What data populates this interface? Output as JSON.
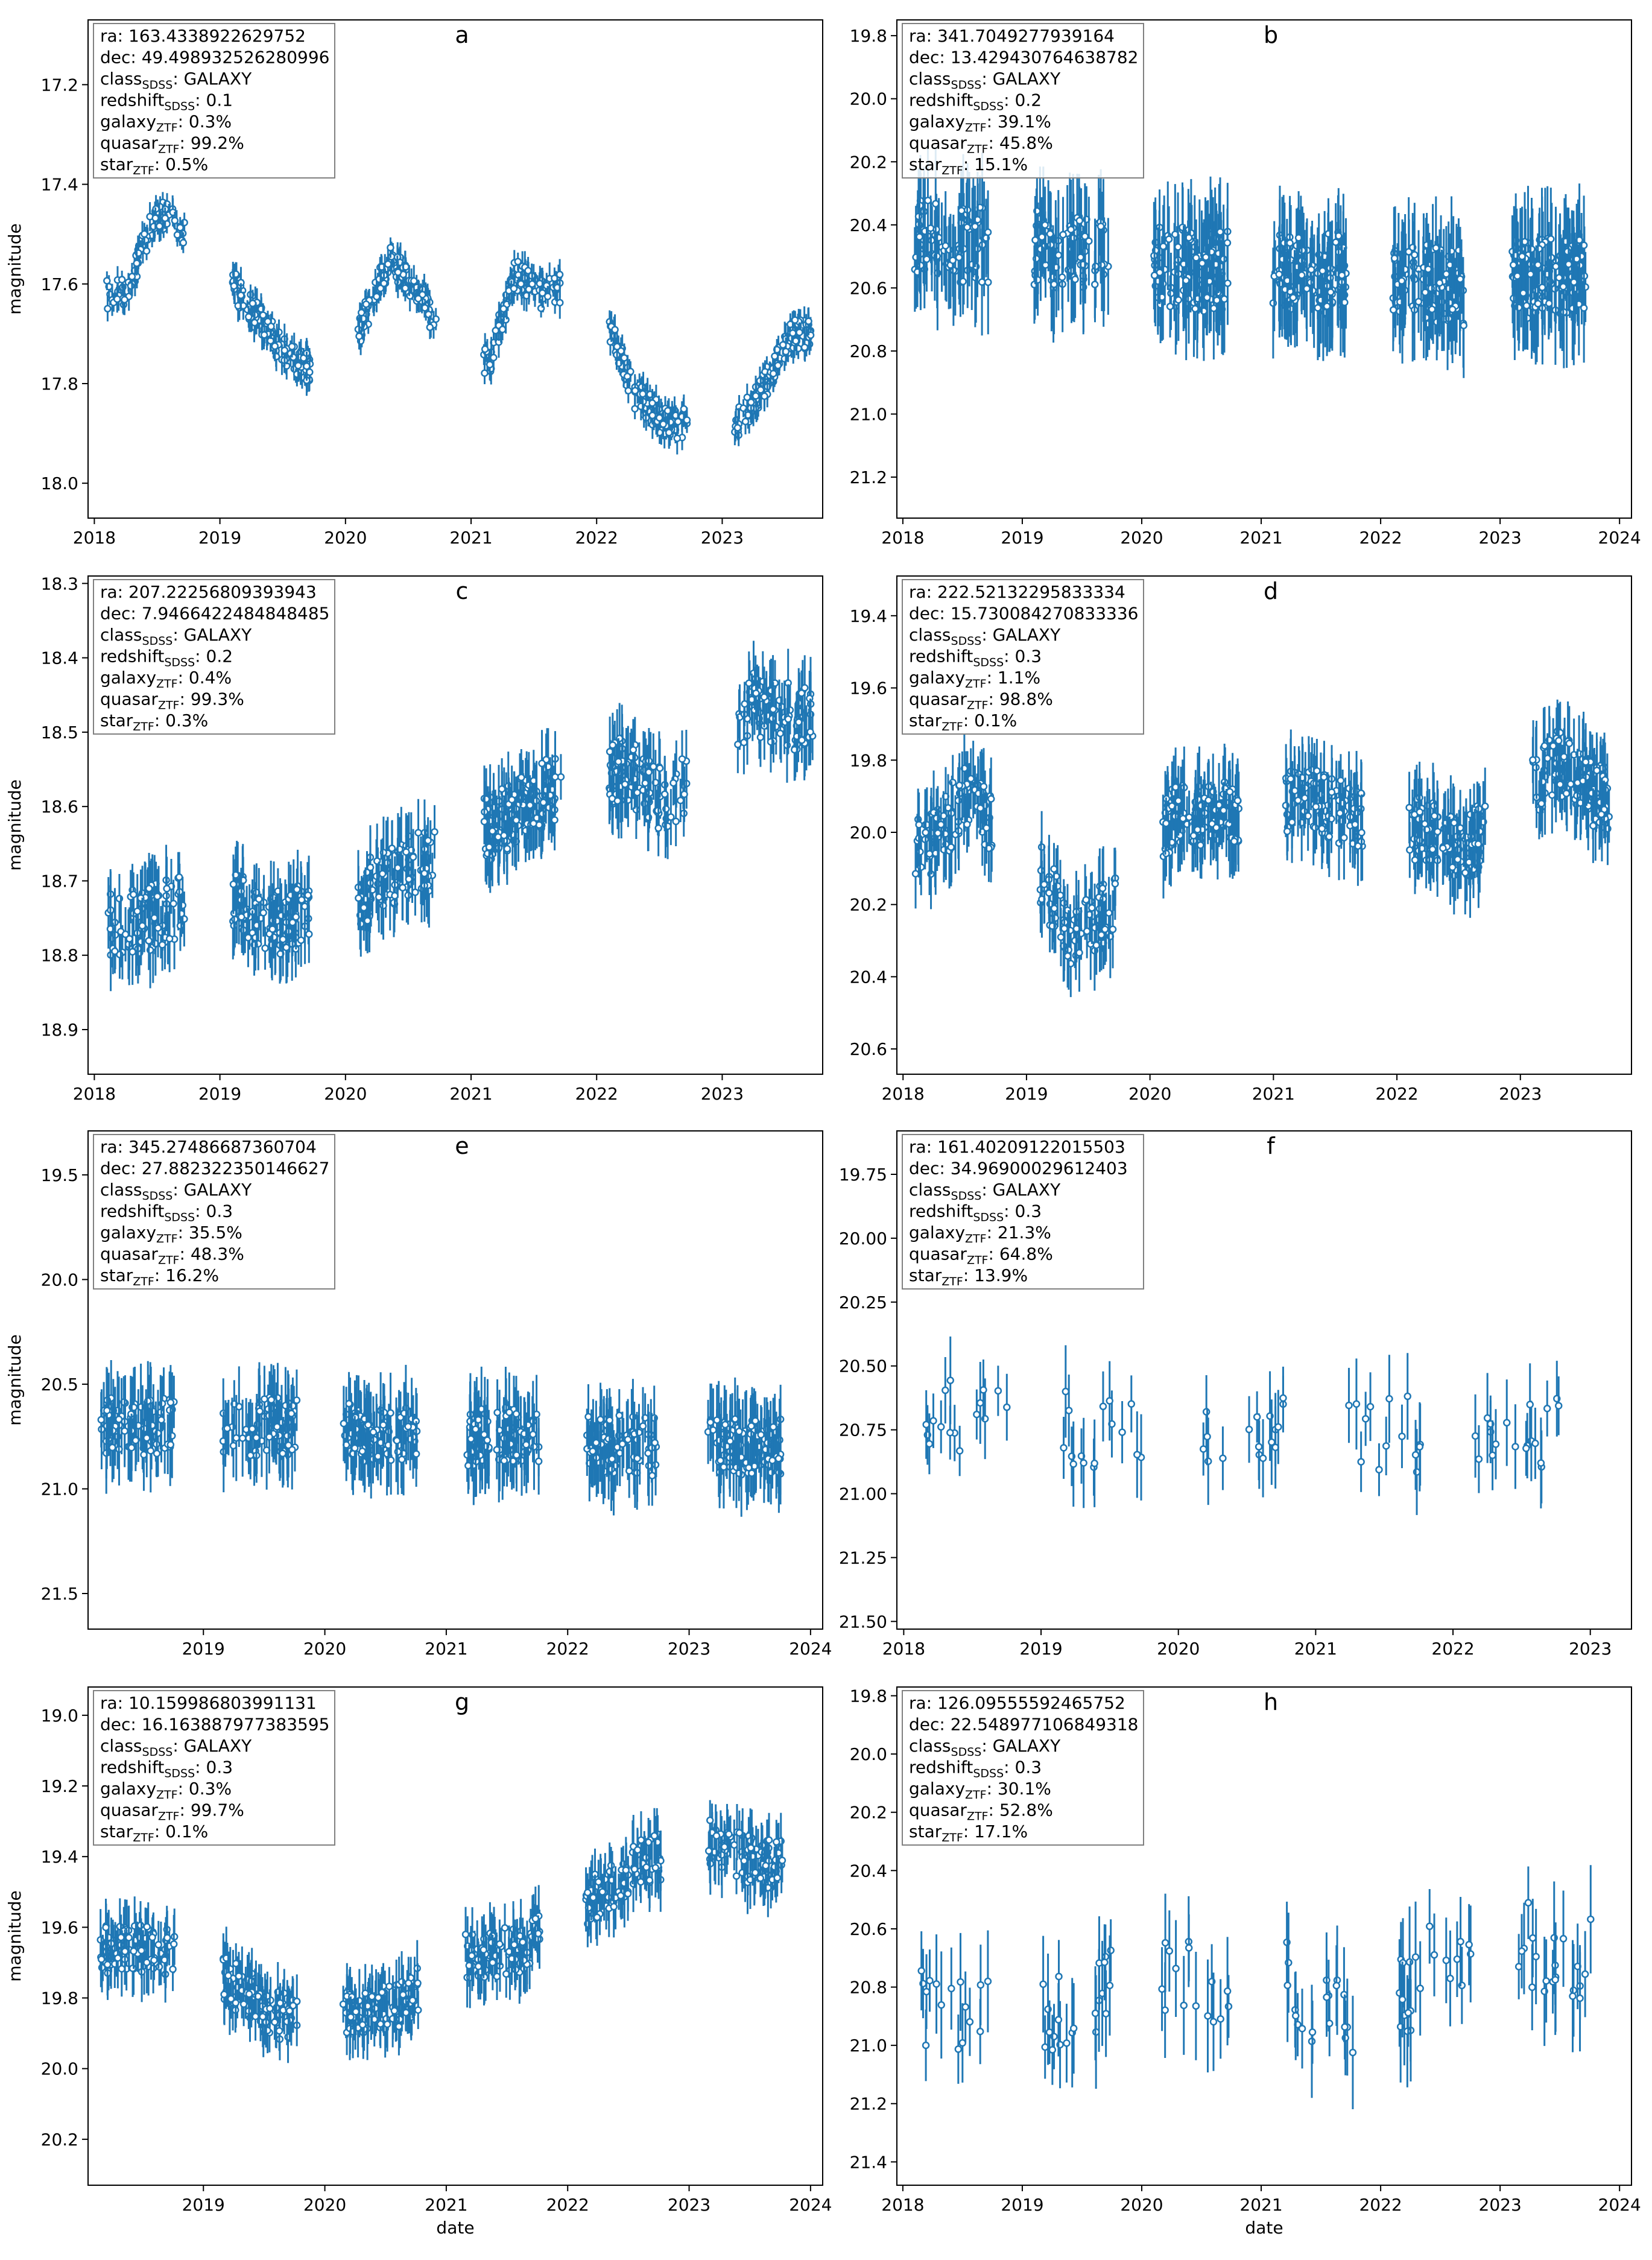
{
  "figure": {
    "xlabel": "date",
    "ylabel": "magnitude"
  },
  "chart_data": [
    {
      "panel": "a",
      "type": "scatter",
      "title": "a",
      "xlabel": "",
      "ylabel": "magnitude",
      "xlim": [
        2017.95,
        2023.8
      ],
      "ylim": [
        18.07,
        17.07
      ],
      "xticks": [
        "2018",
        "2019",
        "2020",
        "2021",
        "2022",
        "2023"
      ],
      "yticks": [
        "17.2",
        "17.4",
        "17.6",
        "17.8",
        "18.0"
      ],
      "info": {
        "ra": "163.4338922629752",
        "dec": "49.498932526280996",
        "class": "GALAXY",
        "redshift": "0.1",
        "galaxy": "0.3%",
        "quasar": "99.2%",
        "star": "0.5%"
      },
      "seed": 11,
      "season_gap": 0.6,
      "err": 0.025,
      "noise": 0.03,
      "seasons": 6,
      "trend": [
        [
          2018.25,
          17.62
        ],
        [
          2018.5,
          17.45
        ],
        [
          2018.95,
          17.55
        ],
        [
          2019.25,
          17.65
        ],
        [
          2019.55,
          17.75
        ],
        [
          2019.85,
          17.78
        ],
        [
          2020.1,
          17.7
        ],
        [
          2020.35,
          17.55
        ],
        [
          2020.6,
          17.62
        ],
        [
          2020.95,
          17.8
        ],
        [
          2021.15,
          17.75
        ],
        [
          2021.35,
          17.58
        ],
        [
          2021.55,
          17.62
        ],
        [
          2021.9,
          17.6
        ],
        [
          2022.1,
          17.68
        ],
        [
          2022.3,
          17.82
        ],
        [
          2022.55,
          17.88
        ],
        [
          2022.85,
          17.88
        ],
        [
          2023.05,
          17.9
        ],
        [
          2023.3,
          17.82
        ],
        [
          2023.55,
          17.7
        ]
      ]
    },
    {
      "panel": "b",
      "type": "scatter",
      "title": "b",
      "xlabel": "",
      "ylabel": "",
      "xlim": [
        2017.95,
        2024.1
      ],
      "ylim": [
        21.33,
        19.75
      ],
      "xticks": [
        "2018",
        "2019",
        "2020",
        "2021",
        "2022",
        "2023",
        "2024"
      ],
      "yticks": [
        "19.8",
        "20.0",
        "20.2",
        "20.4",
        "20.6",
        "20.8",
        "21.0",
        "21.2"
      ],
      "info": {
        "ra": "341.7049277939164",
        "dec": "13.429430764638782",
        "class": "GALAXY",
        "redshift": "0.2",
        "galaxy": "39.1%",
        "quasar": "45.8%",
        "star": "15.1%"
      },
      "seed": 23,
      "season_gap": 0.55,
      "err": 0.14,
      "noise": 0.13,
      "seasons": 6,
      "trend": [
        [
          2018.25,
          20.45
        ],
        [
          2019.55,
          20.5
        ],
        [
          2020.6,
          20.55
        ],
        [
          2021.6,
          20.55
        ],
        [
          2022.6,
          20.6
        ],
        [
          2023.6,
          20.55
        ]
      ]
    },
    {
      "panel": "c",
      "type": "scatter",
      "title": "c",
      "xlabel": "",
      "ylabel": "magnitude",
      "xlim": [
        2017.95,
        2023.8
      ],
      "ylim": [
        18.96,
        18.29
      ],
      "xticks": [
        "2018",
        "2019",
        "2020",
        "2021",
        "2022",
        "2023"
      ],
      "yticks": [
        "18.3",
        "18.4",
        "18.5",
        "18.6",
        "18.7",
        "18.8",
        "18.9"
      ],
      "info": {
        "ra": "207.22256809393943",
        "dec": "7.9466422484848485",
        "class": "GALAXY",
        "redshift": "0.2",
        "galaxy": "0.4%",
        "quasar": "99.3%",
        "star": "0.3%"
      },
      "seed": 37,
      "season_gap": 0.55,
      "err": 0.04,
      "noise": 0.045,
      "seasons": 6,
      "trend": [
        [
          2018.25,
          18.76
        ],
        [
          2019.0,
          18.72
        ],
        [
          2019.5,
          18.76
        ],
        [
          2020.3,
          18.7
        ],
        [
          2021.25,
          18.62
        ],
        [
          2021.6,
          18.58
        ],
        [
          2022.25,
          18.55
        ],
        [
          2022.55,
          18.6
        ],
        [
          2023.25,
          18.46
        ],
        [
          2023.55,
          18.48
        ]
      ]
    },
    {
      "panel": "d",
      "type": "scatter",
      "title": "d",
      "xlabel": "",
      "ylabel": "",
      "xlim": [
        2017.95,
        2023.9
      ],
      "ylim": [
        20.67,
        19.29
      ],
      "xticks": [
        "2018",
        "2019",
        "2020",
        "2021",
        "2022",
        "2023"
      ],
      "yticks": [
        "19.4",
        "19.6",
        "19.8",
        "20.0",
        "20.2",
        "20.4",
        "20.6"
      ],
      "info": {
        "ra": "222.52132295833334",
        "dec": "15.730084270833336",
        "class": "GALAXY",
        "redshift": "0.3",
        "galaxy": "1.1%",
        "quasar": "98.8%",
        "star": "0.1%"
      },
      "seed": 41,
      "season_gap": 0.55,
      "err": 0.09,
      "noise": 0.09,
      "seasons": 6,
      "trend": [
        [
          2018.2,
          20.05
        ],
        [
          2018.5,
          19.9
        ],
        [
          2019.0,
          20.05
        ],
        [
          2019.4,
          20.3
        ],
        [
          2019.7,
          20.2
        ],
        [
          2020.2,
          19.95
        ],
        [
          2020.6,
          19.95
        ],
        [
          2021.2,
          19.9
        ],
        [
          2021.6,
          19.95
        ],
        [
          2022.3,
          20.0
        ],
        [
          2022.55,
          20.05
        ],
        [
          2023.3,
          19.8
        ],
        [
          2023.6,
          19.9
        ]
      ]
    },
    {
      "panel": "e",
      "type": "scatter",
      "title": "e",
      "xlabel": "",
      "ylabel": "magnitude",
      "xlim": [
        2018.05,
        2024.1
      ],
      "ylim": [
        21.67,
        19.29
      ],
      "xticks": [
        "2019",
        "2020",
        "2021",
        "2022",
        "2023",
        "2024"
      ],
      "yticks": [
        "19.5",
        "20.0",
        "20.5",
        "21.0",
        "21.5"
      ],
      "info": {
        "ra": "345.27486687360704",
        "dec": "27.882322350146627",
        "class": "GALAXY",
        "redshift": "0.3",
        "galaxy": "35.5%",
        "quasar": "48.3%",
        "star": "16.2%"
      },
      "seed": 53,
      "season_gap": 0.55,
      "err": 0.16,
      "noise": 0.14,
      "seasons": 6,
      "trend": [
        [
          2018.5,
          20.7
        ],
        [
          2019.6,
          20.7
        ],
        [
          2020.7,
          20.75
        ],
        [
          2021.7,
          20.75
        ],
        [
          2022.7,
          20.8
        ],
        [
          2023.7,
          20.8
        ]
      ]
    },
    {
      "panel": "f",
      "type": "scatter",
      "title": "f",
      "xlabel": "",
      "ylabel": "",
      "xlim": [
        2017.95,
        2023.3
      ],
      "ylim": [
        21.53,
        19.58
      ],
      "xticks": [
        "2018",
        "2019",
        "2020",
        "2021",
        "2022",
        "2023"
      ],
      "yticks": [
        "19.75",
        "20.00",
        "20.25",
        "20.50",
        "20.75",
        "21.00",
        "21.25",
        "21.50"
      ],
      "info": {
        "ra": "161.40209122015503",
        "dec": "34.96900029612403",
        "class": "GALAXY",
        "redshift": "0.3",
        "galaxy": "21.3%",
        "quasar": "64.8%",
        "star": "13.9%"
      },
      "seed": 67,
      "season_gap": 0.55,
      "err": 0.14,
      "noise": 0.16,
      "seasons": 5,
      "sparse": true,
      "trend": [
        [
          2018.4,
          20.7
        ],
        [
          2019.5,
          20.75
        ],
        [
          2020.3,
          20.8
        ],
        [
          2021.2,
          20.75
        ],
        [
          2022.3,
          20.8
        ],
        [
          2023.0,
          20.7
        ]
      ]
    },
    {
      "panel": "g",
      "type": "scatter",
      "title": "g",
      "xlabel": "date",
      "ylabel": "magnitude",
      "xlim": [
        2018.05,
        2024.1
      ],
      "ylim": [
        20.33,
        18.92
      ],
      "xticks": [
        "2019",
        "2020",
        "2021",
        "2022",
        "2023",
        "2024"
      ],
      "yticks": [
        "19.0",
        "19.2",
        "19.4",
        "19.6",
        "19.8",
        "20.0",
        "20.2"
      ],
      "info": {
        "ra": "10.159986803991131",
        "dec": "16.163887977383595",
        "class": "GALAXY",
        "redshift": "0.3",
        "galaxy": "0.3%",
        "quasar": "99.7%",
        "star": "0.1%"
      },
      "seed": 79,
      "season_gap": 0.55,
      "err": 0.07,
      "noise": 0.07,
      "seasons": 6,
      "trend": [
        [
          2018.5,
          19.66
        ],
        [
          2019.0,
          19.7
        ],
        [
          2019.6,
          19.85
        ],
        [
          2020.1,
          19.85
        ],
        [
          2020.6,
          19.82
        ],
        [
          2021.0,
          19.7
        ],
        [
          2021.6,
          19.66
        ],
        [
          2022.6,
          19.42
        ],
        [
          2023.1,
          19.35
        ],
        [
          2023.6,
          19.42
        ]
      ]
    },
    {
      "panel": "h",
      "type": "scatter",
      "title": "h",
      "xlabel": "date",
      "ylabel": "",
      "xlim": [
        2017.95,
        2024.1
      ],
      "ylim": [
        21.48,
        19.77
      ],
      "xticks": [
        "2018",
        "2019",
        "2020",
        "2021",
        "2022",
        "2023",
        "2024"
      ],
      "yticks": [
        "19.8",
        "20.0",
        "20.2",
        "20.4",
        "20.6",
        "20.8",
        "21.0",
        "21.2",
        "21.4"
      ],
      "info": {
        "ra": "126.09555592465752",
        "dec": "22.548977106849318",
        "class": "GALAXY",
        "redshift": "0.3",
        "galaxy": "30.1%",
        "quasar": "52.8%",
        "star": "17.1%"
      },
      "seed": 97,
      "season_gap": 0.55,
      "err": 0.15,
      "noise": 0.16,
      "seasons": 6,
      "sparse": true,
      "trend": [
        [
          2018.9,
          20.9
        ],
        [
          2019.9,
          20.8
        ],
        [
          2020.9,
          20.75
        ],
        [
          2021.9,
          20.9
        ],
        [
          2022.9,
          20.6
        ],
        [
          2023.7,
          20.7
        ]
      ]
    }
  ]
}
